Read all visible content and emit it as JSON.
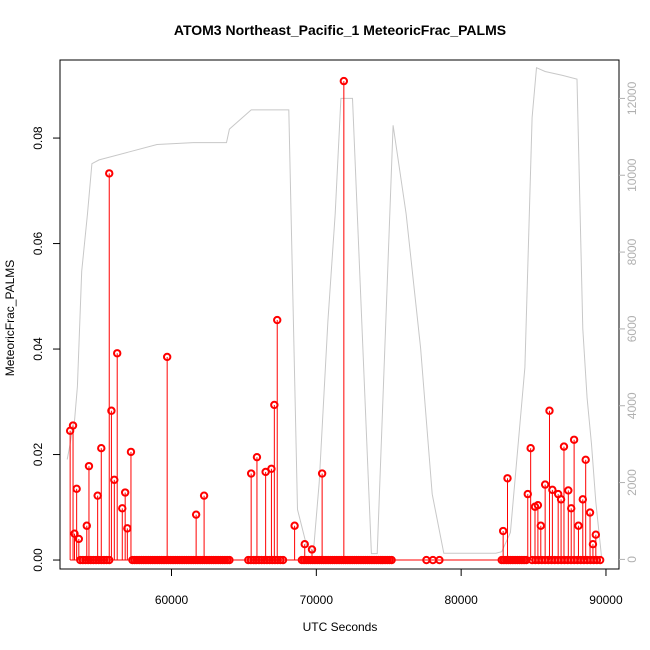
{
  "chart_data": {
    "type": "line",
    "title": "ATOM3 Northeast_Pacific_1 MeteoricFrac_PALMS",
    "xlabel": "UTC Seconds",
    "ylabel": "MeteoricFrac_PALMS",
    "xlim": [
      52300,
      90900
    ],
    "ylim": [
      -0.0017,
      0.0948
    ],
    "y2lim": [
      -250,
      13000
    ],
    "x_ticks": [
      60000,
      70000,
      80000,
      90000
    ],
    "x_tick_labels": [
      "60000",
      "70000",
      "80000",
      "90000"
    ],
    "y_ticks": [
      0.0,
      0.02,
      0.04,
      0.06,
      0.08
    ],
    "y_tick_labels": [
      "0.00",
      "0.02",
      "0.04",
      "0.06",
      "0.08"
    ],
    "y2_ticks": [
      0,
      2000,
      4000,
      6000,
      8000,
      10000,
      12000
    ],
    "y2_tick_labels": [
      "0",
      "2000",
      "4000",
      "6000",
      "8000",
      "10000",
      "12000"
    ],
    "colors": {
      "series": "#ff0000",
      "altitude": "#c8c8c8",
      "axes": "#000000",
      "right_axis": "#b0b0b0"
    },
    "series": [
      {
        "type": "scatter-stem",
        "points": [
          [
            53000,
            0.0245
          ],
          [
            53200,
            0.0255
          ],
          [
            53300,
            0.005
          ],
          [
            53450,
            0.0135
          ],
          [
            53600,
            0.004
          ],
          [
            54150,
            0.0065
          ],
          [
            54300,
            0.0178
          ],
          [
            54900,
            0.0122
          ],
          [
            55150,
            0.0212
          ],
          [
            55700,
            0.0733
          ],
          [
            55850,
            0.0283
          ],
          [
            56050,
            0.0152
          ],
          [
            56250,
            0.0392
          ],
          [
            56600,
            0.0098
          ],
          [
            56800,
            0.0128
          ],
          [
            56950,
            0.006
          ],
          [
            57200,
            0.0205
          ],
          [
            59700,
            0.0385
          ],
          [
            61700,
            0.0086
          ],
          [
            62250,
            0.0122
          ],
          [
            65500,
            0.0164
          ],
          [
            65900,
            0.0195
          ],
          [
            66500,
            0.0167
          ],
          [
            66900,
            0.0173
          ],
          [
            67100,
            0.0294
          ],
          [
            67300,
            0.0455
          ],
          [
            68500,
            0.0065
          ],
          [
            69200,
            0.003
          ],
          [
            69700,
            0.002
          ],
          [
            70400,
            0.0164
          ],
          [
            71900,
            0.0908
          ],
          [
            82900,
            0.0055
          ],
          [
            83200,
            0.0155
          ],
          [
            84600,
            0.0125
          ],
          [
            84800,
            0.0212
          ],
          [
            85100,
            0.0101
          ],
          [
            85300,
            0.0104
          ],
          [
            85500,
            0.0065
          ],
          [
            85800,
            0.0143
          ],
          [
            86100,
            0.0283
          ],
          [
            86300,
            0.0133
          ],
          [
            86700,
            0.0125
          ],
          [
            86900,
            0.0115
          ],
          [
            87100,
            0.0215
          ],
          [
            87400,
            0.0132
          ],
          [
            87600,
            0.0098
          ],
          [
            87800,
            0.0228
          ],
          [
            88100,
            0.0065
          ],
          [
            88400,
            0.0115
          ],
          [
            88600,
            0.019
          ],
          [
            88900,
            0.009
          ],
          [
            89100,
            0.003
          ],
          [
            89300,
            0.0048
          ]
        ],
        "zero_runs": [
          [
            53700,
            55700,
            12
          ],
          [
            57300,
            64000,
            44
          ],
          [
            65300,
            67700,
            14
          ],
          [
            69000,
            75200,
            42
          ],
          [
            77600,
            78500,
            3
          ],
          [
            82800,
            84500,
            12
          ],
          [
            84900,
            89600,
            22
          ]
        ]
      },
      {
        "name": "altitude",
        "axis": "right",
        "x": [
          52800,
          53000,
          53200,
          53300,
          53500,
          53800,
          54200,
          54500,
          55000,
          57000,
          59000,
          61500,
          63800,
          64000,
          65500,
          67000,
          68100,
          68700,
          69300,
          69800,
          70200,
          70800,
          71300,
          71700,
          72500,
          73800,
          74200,
          75300,
          76200,
          77200,
          78000,
          78800,
          82400,
          82800,
          83400,
          84400,
          84900,
          85200,
          85800,
          87000,
          88000,
          88400,
          88700,
          89000,
          89300,
          89700
        ],
        "y": [
          2600,
          3000,
          3500,
          3600,
          4500,
          7500,
          9000,
          10300,
          10400,
          10600,
          10800,
          10850,
          10850,
          11200,
          11700,
          11700,
          11700,
          1300,
          400,
          200,
          2000,
          6200,
          9000,
          12000,
          12000,
          150,
          150,
          11300,
          9000,
          5500,
          1700,
          160,
          160,
          200,
          700,
          5000,
          11500,
          12800,
          12700,
          12600,
          12500,
          6000,
          4200,
          3000,
          1500,
          50
        ]
      }
    ]
  }
}
